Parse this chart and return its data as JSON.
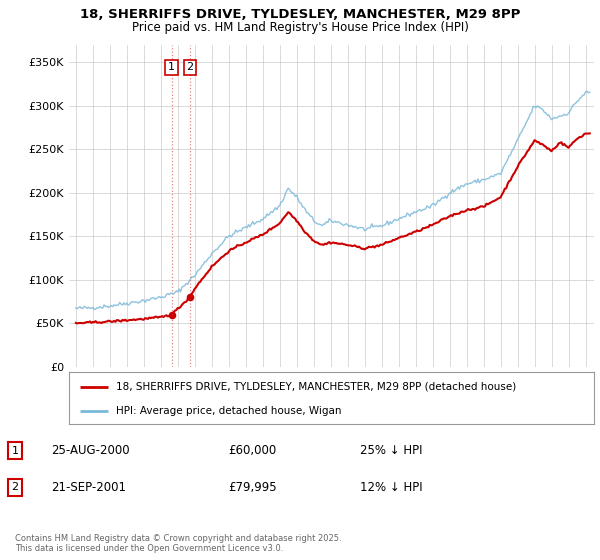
{
  "title": "18, SHERRIFFS DRIVE, TYLDESLEY, MANCHESTER, M29 8PP",
  "subtitle": "Price paid vs. HM Land Registry's House Price Index (HPI)",
  "footer": "Contains HM Land Registry data © Crown copyright and database right 2025.\nThis data is licensed under the Open Government Licence v3.0.",
  "legend_line1": "18, SHERRIFFS DRIVE, TYLDESLEY, MANCHESTER, M29 8PP (detached house)",
  "legend_line2": "HPI: Average price, detached house, Wigan",
  "transaction1_date": "25-AUG-2000",
  "transaction1_price": "£60,000",
  "transaction1_hpi": "25% ↓ HPI",
  "transaction2_date": "21-SEP-2001",
  "transaction2_price": "£79,995",
  "transaction2_hpi": "12% ↓ HPI",
  "hpi_color": "#7ab8d9",
  "price_color": "#cc0000",
  "vline_color": "#dd6666",
  "marker1_x": 2000.64,
  "marker1_y": 60000,
  "marker2_x": 2001.72,
  "marker2_y": 79995,
  "vline1_x": 2000.64,
  "vline2_x": 2001.72,
  "ylim": [
    0,
    370000
  ],
  "xlim_start": 1994.6,
  "xlim_end": 2025.5,
  "yticks": [
    0,
    50000,
    100000,
    150000,
    200000,
    250000,
    300000,
    350000
  ],
  "xticks": [
    1995,
    1996,
    1997,
    1998,
    1999,
    2000,
    2001,
    2002,
    2003,
    2004,
    2005,
    2006,
    2007,
    2008,
    2009,
    2010,
    2011,
    2012,
    2013,
    2014,
    2015,
    2016,
    2017,
    2018,
    2019,
    2020,
    2021,
    2022,
    2023,
    2024,
    2025
  ],
  "background_color": "#ffffff",
  "grid_color": "#cccccc"
}
